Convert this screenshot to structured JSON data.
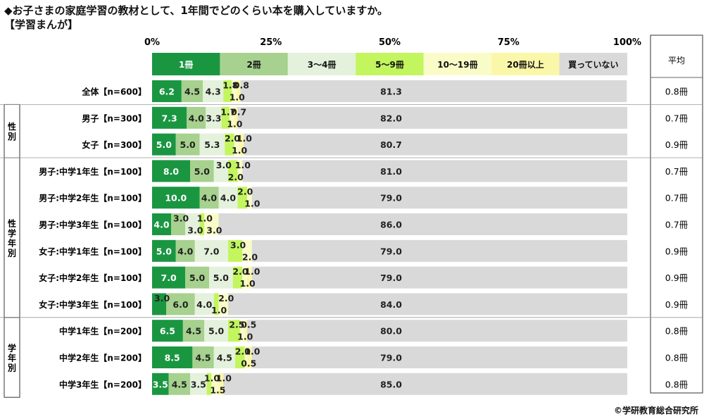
{
  "title": "◆お子さまの家庭学習の教材として、1年間でどのくらい本を購入していますか。",
  "subtitle": "【学習まんが】",
  "copyright": "©学研教育総合研究所",
  "avg_header": "平均",
  "chart_data": {
    "type": "bar",
    "stacked": true,
    "orientation": "horizontal",
    "percent": true,
    "xlim": [
      0,
      100
    ],
    "ticks": [
      "0%",
      "25%",
      "50%",
      "75%",
      "100%"
    ],
    "categories": [
      "全体【n=600】",
      "男子【n=300】",
      "女子【n=300】",
      "男子:中学1年生【n=100】",
      "男子:中学2年生【n=100】",
      "男子:中学3年生【n=100】",
      "女子:中学1年生【n=100】",
      "女子:中学2年生【n=100】",
      "女子:中学3年生【n=100】",
      "中学1年生【n=200】",
      "中学2年生【n=200】",
      "中学3年生【n=200】"
    ],
    "groups": [
      {
        "label": "",
        "start": 0,
        "end": 0
      },
      {
        "label": "性別",
        "start": 1,
        "end": 2
      },
      {
        "label": "性学年別",
        "start": 3,
        "end": 8
      },
      {
        "label": "学年別",
        "start": 9,
        "end": 11
      }
    ],
    "series": [
      {
        "name": "1冊",
        "color": "#1a9641",
        "values": [
          6.2,
          7.3,
          5.0,
          8.0,
          10.0,
          4.0,
          5.0,
          7.0,
          3.0,
          6.5,
          8.5,
          3.5
        ]
      },
      {
        "name": "2冊",
        "color": "#a6d18e",
        "values": [
          4.5,
          4.0,
          5.0,
          5.0,
          4.0,
          3.0,
          4.0,
          5.0,
          6.0,
          4.5,
          4.5,
          4.5
        ]
      },
      {
        "name": "3～4冊",
        "color": "#e4f1dc",
        "values": [
          4.3,
          3.3,
          5.3,
          3.0,
          4.0,
          3.0,
          7.0,
          5.0,
          4.0,
          5.0,
          4.5,
          3.5
        ]
      },
      {
        "name": "5～9冊",
        "color": "#c3f55e",
        "values": [
          1.8,
          1.7,
          2.0,
          2.0,
          2.0,
          1.0,
          3.0,
          2.0,
          1.0,
          2.5,
          2.0,
          1.0
        ]
      },
      {
        "name": "10～19冊",
        "color": "#fafcc8",
        "values": [
          1.0,
          1.0,
          1.0,
          1.0,
          1.0,
          3.0,
          2.0,
          1.0,
          2.0,
          1.0,
          0.5,
          1.5
        ]
      },
      {
        "name": "20冊以上",
        "color": "#fbf7a8",
        "values": [
          0.8,
          0.7,
          1.0,
          0.0,
          0.0,
          0.0,
          0.0,
          1.0,
          0.0,
          0.5,
          1.0,
          1.0
        ]
      },
      {
        "name": "買っていない",
        "color": "#d9d9d9",
        "values": [
          81.3,
          82.0,
          80.7,
          81.0,
          79.0,
          86.0,
          79.0,
          79.0,
          84.0,
          80.0,
          79.0,
          85.0
        ]
      }
    ],
    "labels": [
      [
        "6.2",
        "4.5",
        "4.3",
        "1.8",
        "1.0",
        "0.8",
        "81.3"
      ],
      [
        "7.3",
        "4.0",
        "3.3",
        "1.7",
        "1.0",
        "0.7",
        "82.0"
      ],
      [
        "5.0",
        "5.0",
        "5.3",
        "2.0",
        "1.0",
        "1.0",
        "80.7"
      ],
      [
        "8.0",
        "5.0",
        "3.0",
        "2.0",
        "1.0",
        "",
        "81.0"
      ],
      [
        "10.0",
        "4.0",
        "4.0",
        "2.0",
        "1.0",
        "",
        "79.0"
      ],
      [
        "4.0",
        "3.0",
        "3.0",
        "1.0",
        "3.0",
        "",
        "86.0"
      ],
      [
        "5.0",
        "4.0",
        "7.0",
        "3.0",
        "2.0",
        "",
        "79.0"
      ],
      [
        "7.0",
        "5.0",
        "5.0",
        "2.0",
        "1.0",
        "1.0",
        "79.0"
      ],
      [
        "3.0",
        "6.0",
        "4.0",
        "1.0",
        "2.0",
        "",
        "84.0"
      ],
      [
        "6.5",
        "4.5",
        "5.0",
        "2.5",
        "1.0",
        "0.5",
        "80.0"
      ],
      [
        "8.5",
        "4.5",
        "4.5",
        "2.0",
        "0.5",
        "1.0",
        "79.0"
      ],
      [
        "3.5",
        "4.5",
        "3.5",
        "1.0",
        "1.5",
        "1.0",
        "85.0"
      ]
    ],
    "averages": [
      "0.8冊",
      "0.7冊",
      "0.9冊",
      "0.7冊",
      "0.7冊",
      "0.7冊",
      "0.9冊",
      "0.9冊",
      "0.9冊",
      "0.8冊",
      "0.8冊",
      "0.8冊"
    ]
  }
}
